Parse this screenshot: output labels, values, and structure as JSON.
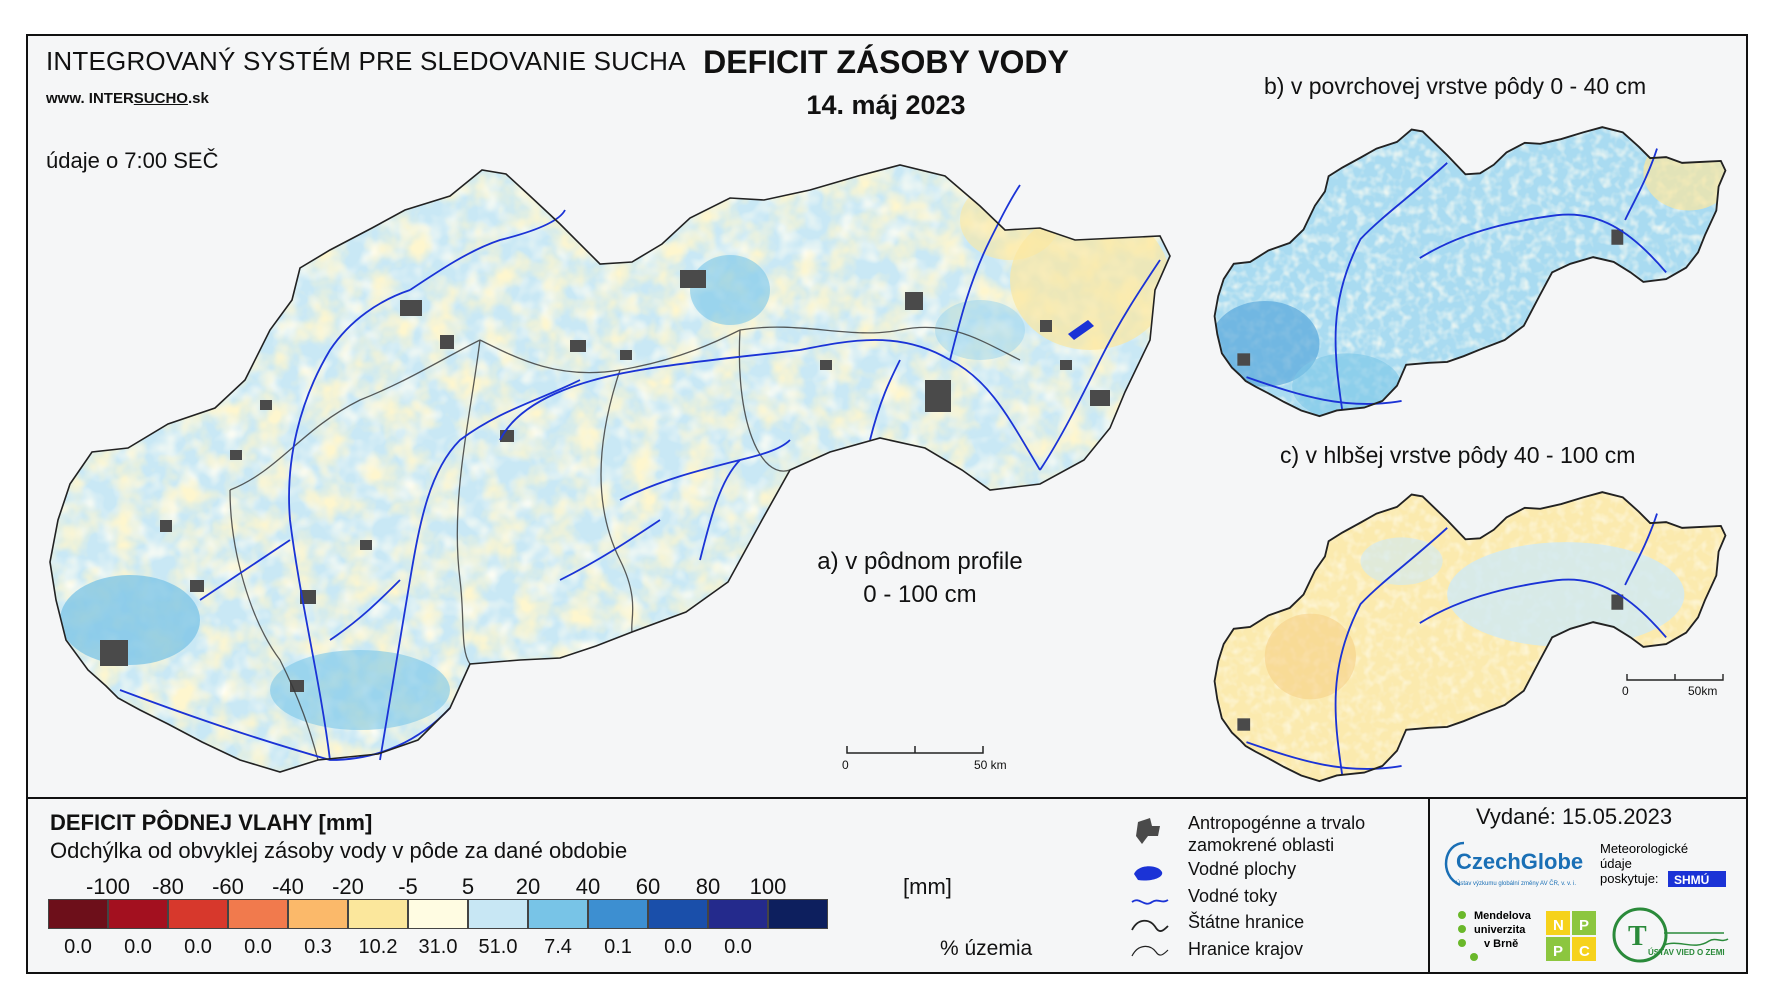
{
  "header": {
    "system_title": "INTEGROVANÝ SYSTÉM PRE SLEDOVANIE SUCHA",
    "website_prefix": "www. INTER",
    "website_mid": "SUCHO",
    "website_suffix": ".sk",
    "data_time": "údaje o 7:00 SEČ",
    "map_title": "DEFICIT ZÁSOBY VODY",
    "map_date": "14. máj 2023"
  },
  "panels": {
    "a_label_line1": "a) v pôdnom profile",
    "a_label_line2": "0 - 100 cm",
    "b_label": "b) v povrchovej vrstve pôdy 0 - 40 cm",
    "c_label": "c) v hlbšej vrstve pôdy 40 - 100 cm"
  },
  "scalebar": {
    "main_start": "0",
    "main_end": "50 km",
    "small_start": "0",
    "small_end": "50km"
  },
  "legend": {
    "title": "DEFICIT PÔDNEJ VLAHY [mm]",
    "subtitle": "Odchýlka od obvyklej zásoby vody v pôde za dané obdobie",
    "unit": "[mm]",
    "ticks": [
      "-100",
      "-80",
      "-60",
      "-40",
      "-20",
      "-5",
      "5",
      "20",
      "40",
      "60",
      "80",
      "100"
    ],
    "colors": [
      "#6d0f1a",
      "#a3101f",
      "#d7382c",
      "#f17a4d",
      "#fbb96a",
      "#fbe79c",
      "#fffce2",
      "#c8e7f4",
      "#78c4e7",
      "#3d8fd1",
      "#1a4faa",
      "#242a8c",
      "#0d1f5e"
    ],
    "percent": [
      "0.0",
      "0.0",
      "0.0",
      "0.0",
      "0.3",
      "10.2",
      "31.0",
      "51.0",
      "7.4",
      "0.1",
      "0.0",
      "0.0"
    ],
    "percent_label": "% územia"
  },
  "symbols": {
    "urban": "Antropogénne a trvalo zamokrené oblasti",
    "urban_line1": "Antropogénne a trvalo",
    "urban_line2": "zamokrené oblasti",
    "water_bodies": "Vodné plochy",
    "rivers": "Vodné toky",
    "state_border": "Štátne hranice",
    "region_border": "Hranice krajov"
  },
  "issued": "Vydané: 15.05.2023",
  "credits": {
    "czechglobe": "CzechGlobe",
    "czechglobe_sub": "Ústav výzkumu globální změny AV ČR, v. v. i.",
    "meteo_line1": "Meteorologické",
    "meteo_line2": "údaje",
    "meteo_line3": "poskytuje:",
    "shmu": "SHMÚ",
    "mendel_line1": "Mendelova",
    "mendel_line2": "univerzita",
    "mendel_line3": "v Brně",
    "nppc": [
      "N",
      "P",
      "P",
      "C"
    ],
    "uvz": "ÚSTAV VIED O ZEMI"
  },
  "colors": {
    "river": "#1b33d6",
    "urban": "#4a4a4a",
    "border": "#222222"
  }
}
